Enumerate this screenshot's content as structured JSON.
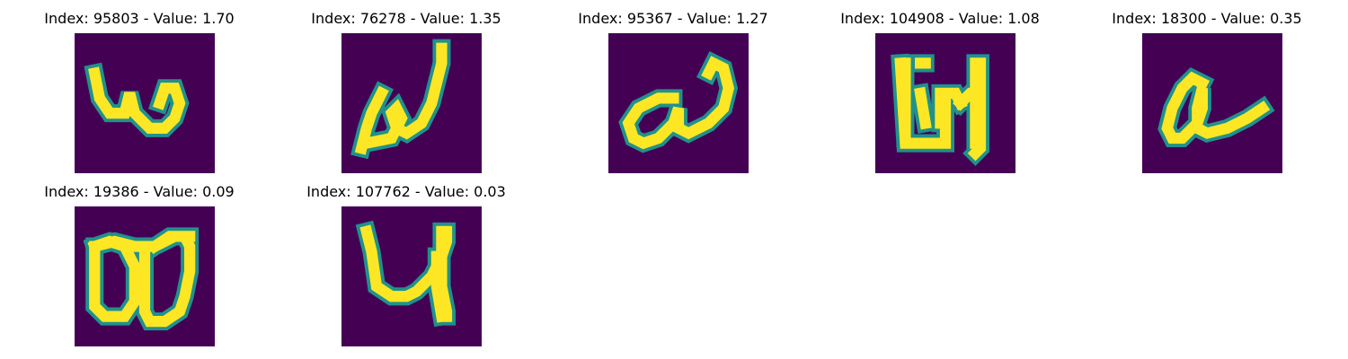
{
  "colors": {
    "background": "#440154",
    "mid_teal": "#21918c",
    "mid_green": "#5ec962",
    "foreground": "#fde725"
  },
  "panels": [
    {
      "title": "Index: 95803 - Value: 1.70"
    },
    {
      "title": "Index: 76278 - Value: 1.35"
    },
    {
      "title": "Index: 95367 - Value: 1.27"
    },
    {
      "title": "Index: 104908 - Value: 1.08"
    },
    {
      "title": "Index: 18300 - Value: 0.35"
    },
    {
      "title": "Index: 19386 - Value: 0.09"
    },
    {
      "title": "Index: 107762 - Value: 0.03"
    }
  ]
}
